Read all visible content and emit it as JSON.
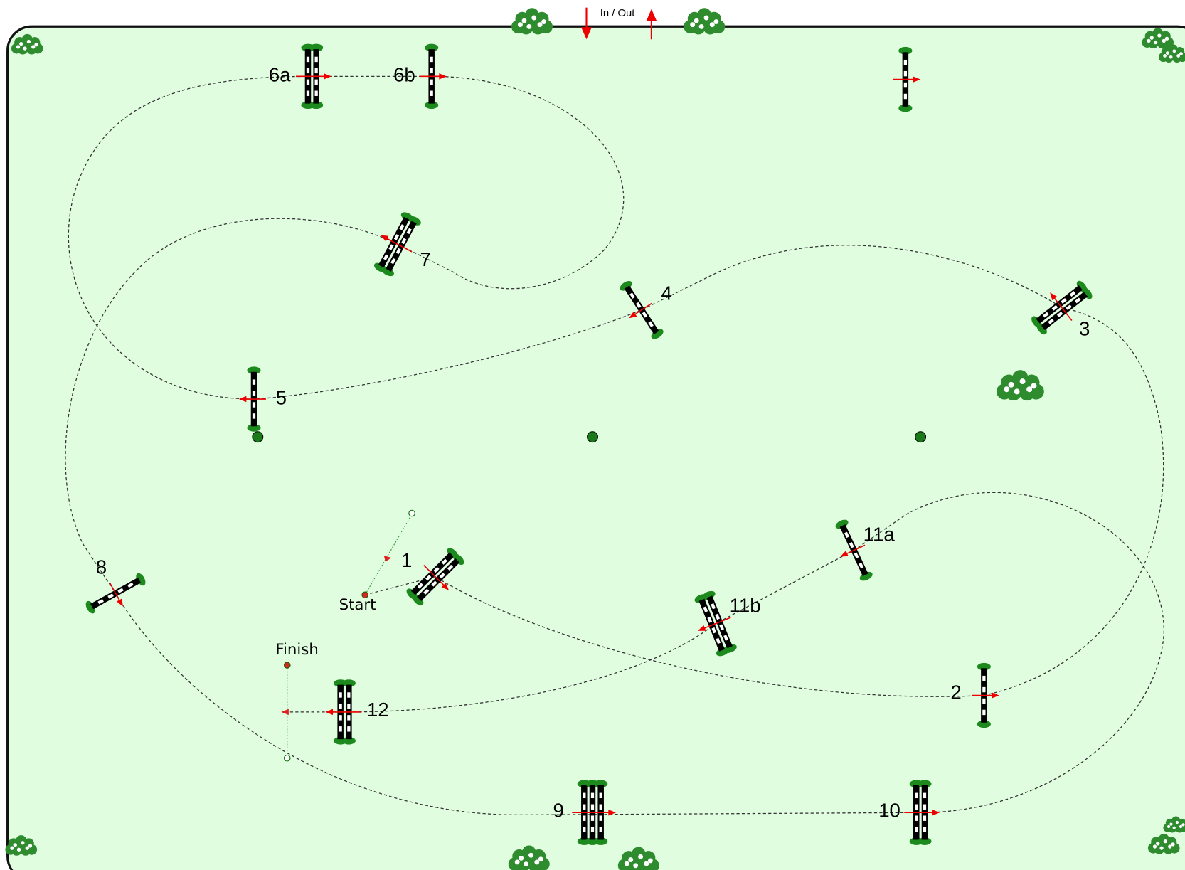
{
  "header": {
    "entrance": "In / Out"
  },
  "start": "Start",
  "finish": "Finish",
  "jumps": [
    "6a",
    "6b",
    "7",
    "4",
    "3",
    "5",
    "8",
    "1",
    "11a",
    "11b",
    "2",
    "12",
    "9",
    "10"
  ]
}
